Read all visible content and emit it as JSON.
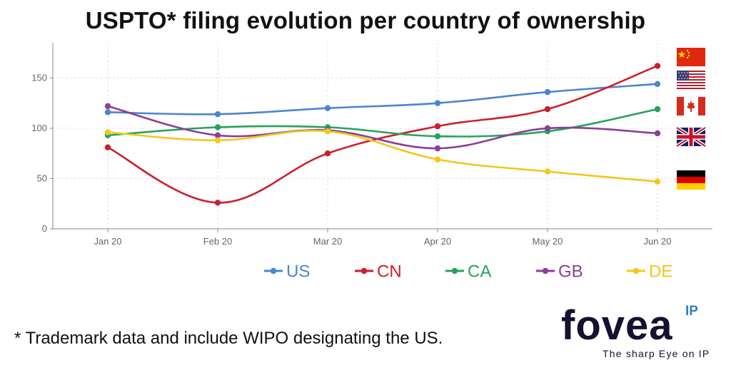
{
  "chart_data": {
    "type": "line",
    "title": "USPTO* filing evolution per country of ownership",
    "categories": [
      "Jan 20",
      "Feb 20",
      "Mar 20",
      "Apr 20",
      "May 20",
      "Jun 20"
    ],
    "ylim": [
      0,
      185
    ],
    "yticks": [
      0,
      50,
      100,
      150
    ],
    "grid": true,
    "legend_position": "bottom",
    "series": [
      {
        "name": "US",
        "color": "#4a86cf",
        "values": [
          116,
          114,
          120,
          125,
          136,
          144
        ]
      },
      {
        "name": "CN",
        "color": "#cc1f2b",
        "values": [
          81,
          26,
          75,
          102,
          119,
          162
        ]
      },
      {
        "name": "CA",
        "color": "#27a35a",
        "values": [
          93,
          101,
          101,
          92,
          97,
          119
        ]
      },
      {
        "name": "GB",
        "color": "#8b3f97",
        "values": [
          122,
          93,
          98,
          80,
          100,
          95
        ]
      },
      {
        "name": "DE",
        "color": "#f3c71b",
        "values": [
          96,
          88,
          97,
          69,
          57,
          47
        ]
      }
    ],
    "flags": [
      "china-flag-icon",
      "usa-flag-icon",
      "canada-flag-icon",
      "uk-flag-icon",
      "germany-flag-icon"
    ]
  },
  "footnote": "* Trademark data and include WIPO designating the US.",
  "logo": {
    "word": "fovea",
    "superscript": "IP",
    "tagline": "The sharp Eye on IP"
  }
}
